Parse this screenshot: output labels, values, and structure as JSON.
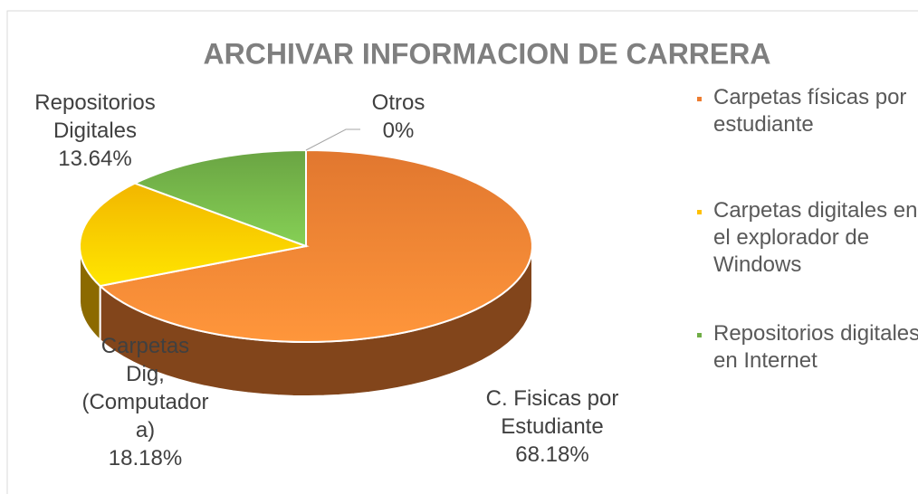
{
  "chart_data": {
    "type": "pie3d",
    "title": "ARCHIVAR INFORMACION DE CARRERA",
    "categories": [
      "C. Fisicas por Estudiante",
      "Carpetas Dig, (Computadora)",
      "Repositorios Digitales",
      "Otros"
    ],
    "values": [
      68.18,
      18.18,
      13.64,
      0
    ],
    "value_labels": [
      "68.18%",
      "18.18%",
      "13.64%",
      "0%"
    ],
    "colors": [
      "#ED7D31",
      "#FFC000",
      "#70AD47",
      "#5B9BD5"
    ],
    "legend": [
      "Carpetas físicas por estudiante",
      "Carpetas digitales en el explorador de Windows",
      "Repositorios digitales en Internet"
    ]
  }
}
